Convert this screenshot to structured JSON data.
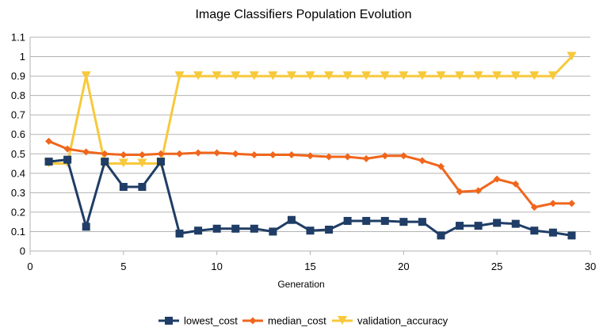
{
  "chart_data": {
    "type": "line",
    "title": "Image Classifiers Population Evolution",
    "xlabel": "Generation",
    "ylabel": "",
    "xlim": [
      0,
      30
    ],
    "ylim": [
      0,
      1.1
    ],
    "x_ticks": [
      0,
      5,
      10,
      15,
      20,
      25,
      30
    ],
    "y_ticks": [
      0,
      0.1,
      0.2,
      0.3,
      0.4,
      0.5,
      0.6,
      0.7,
      0.8,
      0.9,
      1,
      1.1
    ],
    "y_tick_labels": [
      "0",
      "0.1",
      "0.2",
      "0.3",
      "0.4",
      "0.5",
      "0.6",
      "0.7",
      "0.8",
      "0.9",
      "1",
      "1.1"
    ],
    "grid": "horizontal",
    "legend_position": "bottom",
    "x": [
      1,
      2,
      3,
      4,
      5,
      6,
      7,
      8,
      9,
      10,
      11,
      12,
      13,
      14,
      15,
      16,
      17,
      18,
      19,
      20,
      21,
      22,
      23,
      24,
      25,
      26,
      27,
      28,
      29
    ],
    "series": [
      {
        "name": "lowest_cost",
        "color": "#1f3d66",
        "marker": "square",
        "values": [
          0.46,
          0.47,
          0.125,
          0.46,
          0.33,
          0.33,
          0.46,
          0.09,
          0.105,
          0.115,
          0.115,
          0.115,
          0.1,
          0.16,
          0.105,
          0.11,
          0.155,
          0.155,
          0.155,
          0.15,
          0.15,
          0.08,
          0.13,
          0.13,
          0.145,
          0.14,
          0.105,
          0.095,
          0.08
        ]
      },
      {
        "name": "median_cost",
        "color": "#f0661c",
        "marker": "diamond",
        "values": [
          0.565,
          0.525,
          0.51,
          0.5,
          0.495,
          0.495,
          0.5,
          0.5,
          0.505,
          0.505,
          0.5,
          0.495,
          0.495,
          0.495,
          0.49,
          0.485,
          0.485,
          0.475,
          0.49,
          0.49,
          0.465,
          0.435,
          0.305,
          0.31,
          0.37,
          0.345,
          0.225,
          0.245,
          0.245
        ]
      },
      {
        "name": "validation_accuracy",
        "color": "#f7c93b",
        "marker": "triangle-down",
        "values": [
          0.45,
          0.45,
          0.9,
          0.45,
          0.45,
          0.45,
          0.45,
          0.9,
          0.9,
          0.9,
          0.9,
          0.9,
          0.9,
          0.9,
          0.9,
          0.9,
          0.9,
          0.9,
          0.9,
          0.9,
          0.9,
          0.9,
          0.9,
          0.9,
          0.9,
          0.9,
          0.9,
          0.9,
          1.0
        ]
      }
    ]
  }
}
